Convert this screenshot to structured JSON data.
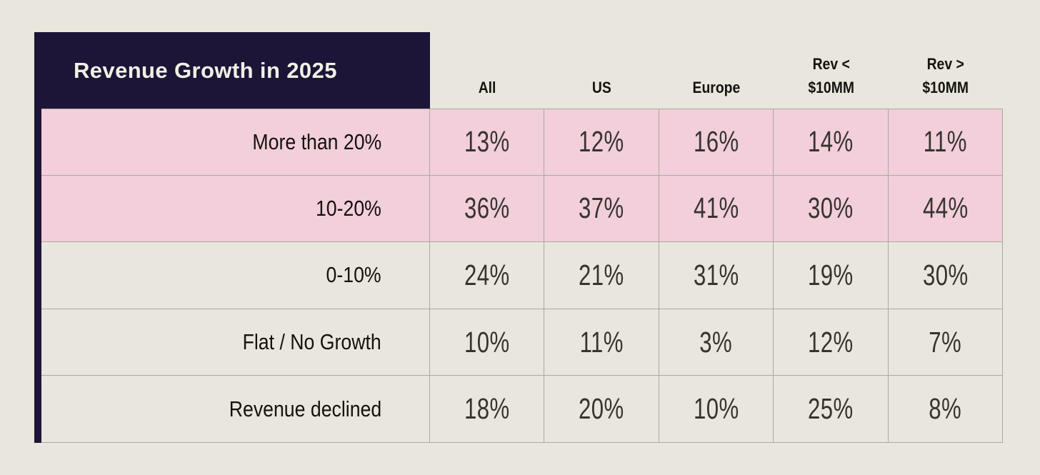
{
  "title": "Revenue Growth in 2025",
  "headers": [
    {
      "top": "",
      "bottom": "All"
    },
    {
      "top": "",
      "bottom": "US"
    },
    {
      "top": "",
      "bottom": "Europe"
    },
    {
      "top": "Rev <",
      "bottom": "$10MM"
    },
    {
      "top": "Rev >",
      "bottom": "$10MM"
    }
  ],
  "rows": [
    {
      "label": "More than 20%",
      "highlight": true,
      "values": [
        "13%",
        "12%",
        "16%",
        "14%",
        "11%"
      ]
    },
    {
      "label": "10-20%",
      "highlight": true,
      "values": [
        "36%",
        "37%",
        "41%",
        "30%",
        "44%"
      ]
    },
    {
      "label": "0-10%",
      "highlight": false,
      "values": [
        "24%",
        "21%",
        "31%",
        "19%",
        "30%"
      ]
    },
    {
      "label": "Flat / No Growth",
      "highlight": false,
      "values": [
        "10%",
        "11%",
        "3%",
        "12%",
        "7%"
      ]
    },
    {
      "label": "Revenue declined",
      "highlight": false,
      "values": [
        "18%",
        "20%",
        "10%",
        "25%",
        "8%"
      ]
    }
  ],
  "colors": {
    "background": "#e9e7dd",
    "header_navy": "#1d1537",
    "highlight_pink": "#f2cfda",
    "grid_border": "#aaa89f",
    "title_text": "#f2efe5"
  },
  "chart_data": {
    "type": "table",
    "title": "Revenue Growth in 2025",
    "columns": [
      "All",
      "US",
      "Europe",
      "Rev < $10MM",
      "Rev > $10MM"
    ],
    "row_categories": [
      "More than 20%",
      "10-20%",
      "0-10%",
      "Flat / No Growth",
      "Revenue declined"
    ],
    "values_percent": [
      [
        13,
        12,
        16,
        14,
        11
      ],
      [
        36,
        37,
        41,
        30,
        44
      ],
      [
        24,
        21,
        31,
        19,
        30
      ],
      [
        10,
        11,
        3,
        12,
        7
      ],
      [
        18,
        20,
        10,
        25,
        8
      ]
    ],
    "highlighted_rows": [
      0,
      1
    ],
    "legend_position": "none",
    "grid": true
  }
}
